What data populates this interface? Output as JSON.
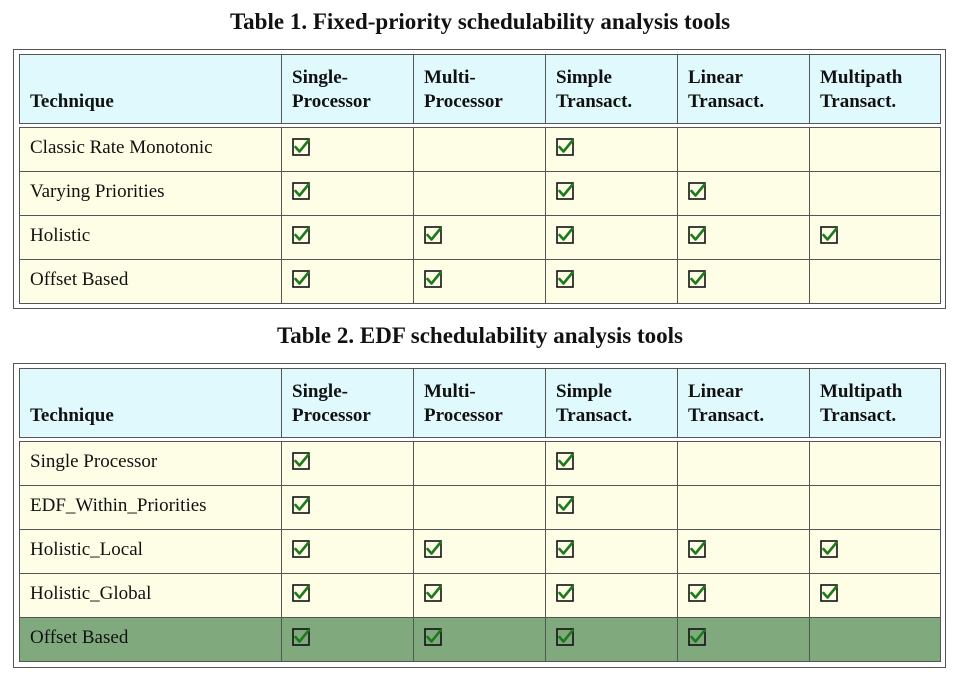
{
  "table1": {
    "caption": "Table 1. Fixed-priority schedulability analysis tools",
    "headers": [
      {
        "line1": "Technique",
        "line2": ""
      },
      {
        "line1": "Single-",
        "line2": "Processor"
      },
      {
        "line1": "Multi-",
        "line2": "Processor"
      },
      {
        "line1": "Simple",
        "line2": "Transact."
      },
      {
        "line1": "Linear",
        "line2": "Transact."
      },
      {
        "line1": "Multipath",
        "line2": "Transact."
      }
    ],
    "rows": [
      {
        "technique": "Classic Rate Monotonic",
        "checks": [
          true,
          false,
          true,
          false,
          false
        ]
      },
      {
        "technique": "Varying Priorities",
        "checks": [
          true,
          false,
          true,
          true,
          false
        ]
      },
      {
        "technique": "Holistic",
        "checks": [
          true,
          true,
          true,
          true,
          true
        ]
      },
      {
        "technique": "Offset Based",
        "checks": [
          true,
          true,
          true,
          true,
          false
        ]
      }
    ]
  },
  "table2": {
    "caption": "Table 2. EDF schedulability analysis tools",
    "headers": [
      {
        "line1": "Technique",
        "line2": ""
      },
      {
        "line1": "Single-",
        "line2": "Processor"
      },
      {
        "line1": "Multi-",
        "line2": "Processor"
      },
      {
        "line1": "Simple",
        "line2": "Transact."
      },
      {
        "line1": "Linear",
        "line2": "Transact."
      },
      {
        "line1": "Multipath",
        "line2": "Transact."
      }
    ],
    "rows": [
      {
        "technique": "Single Processor",
        "checks": [
          true,
          false,
          true,
          false,
          false
        ]
      },
      {
        "technique": "EDF_Within_Priorities",
        "checks": [
          true,
          false,
          true,
          false,
          false
        ]
      },
      {
        "technique": "Holistic_Local",
        "checks": [
          true,
          true,
          true,
          true,
          true
        ]
      },
      {
        "technique": "Holistic_Global",
        "checks": [
          true,
          true,
          true,
          true,
          true
        ]
      },
      {
        "technique": "Offset Based",
        "checks": [
          true,
          true,
          true,
          true,
          false
        ],
        "highlighted": true
      }
    ]
  },
  "colors": {
    "header_bg": "#dff9fd",
    "row_bg": "#fefee6",
    "highlight_bg": "#80a97e",
    "check_color": "#1e7a1e"
  },
  "icons": {
    "check": "checkbox-checked-icon"
  }
}
